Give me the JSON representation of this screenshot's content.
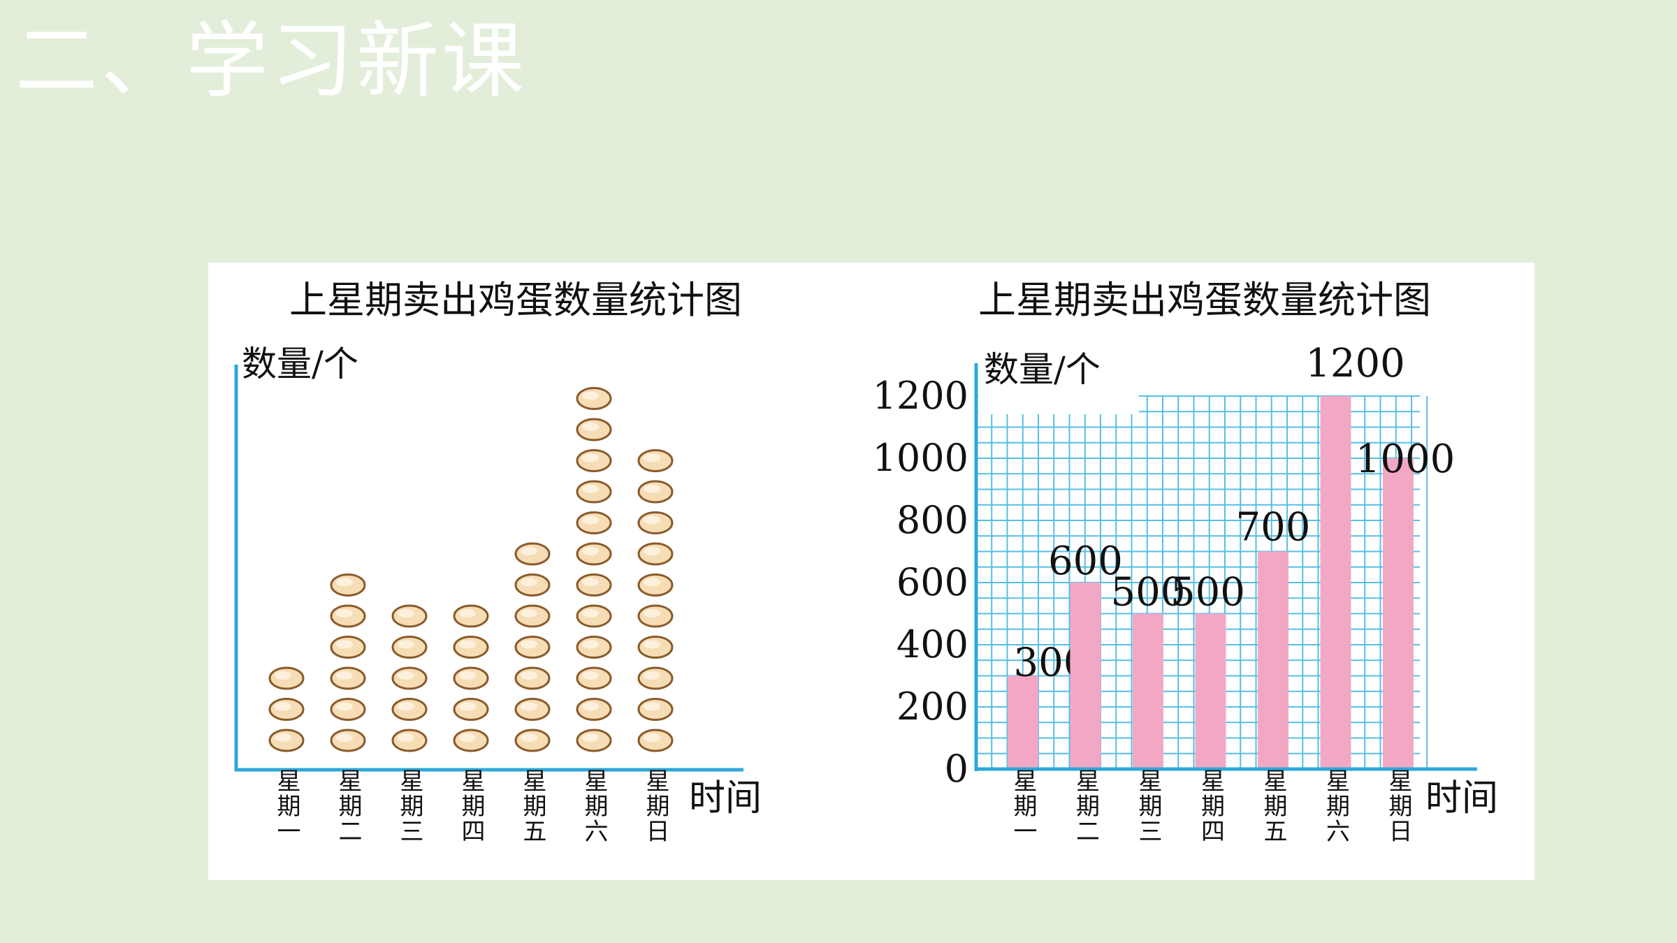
{
  "page": {
    "heading": "二、学习新课"
  },
  "chart_data": [
    {
      "type": "pictograph",
      "title": "上星期卖出鸡蛋数量统计图",
      "ylabel": "数量/个",
      "xlabel": "时间",
      "categories": [
        "星期一",
        "星期二",
        "星期三",
        "星期四",
        "星期五",
        "星期六",
        "星期日"
      ],
      "egg_counts": [
        3,
        6,
        5,
        5,
        7,
        12,
        10
      ],
      "values": [
        300,
        600,
        500,
        500,
        700,
        1200,
        1000
      ]
    },
    {
      "type": "bar",
      "title": "上星期卖出鸡蛋数量统计图",
      "ylabel": "数量/个",
      "xlabel": "时间",
      "categories": [
        "星期一",
        "星期二",
        "星期三",
        "星期四",
        "星期五",
        "星期六",
        "星期日"
      ],
      "values": [
        300,
        600,
        500,
        500,
        700,
        1200,
        1000
      ],
      "ylim": [
        0,
        1200
      ],
      "yticks": [
        "0",
        "200",
        "400",
        "600",
        "800",
        "1000",
        "1200"
      ],
      "grid": true,
      "colors": {
        "bar": "#f2a8c4",
        "grid": "#55bfe4",
        "axis": "#2ea8da"
      }
    }
  ]
}
